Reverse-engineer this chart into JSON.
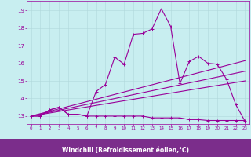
{
  "xlabel": "Windchill (Refroidissement éolien,°C)",
  "bg_color": "#c8eef0",
  "label_bg_color": "#7b2d8b",
  "label_text_color": "#ffffff",
  "line_color": "#990099",
  "grid_color": "#b0d8db",
  "xlim": [
    -0.5,
    23.5
  ],
  "ylim": [
    12.55,
    19.55
  ],
  "yticks": [
    13,
    14,
    15,
    16,
    17,
    18,
    19
  ],
  "xticks": [
    0,
    1,
    2,
    3,
    4,
    5,
    6,
    7,
    8,
    9,
    10,
    11,
    12,
    13,
    14,
    15,
    16,
    17,
    18,
    19,
    20,
    21,
    22,
    23
  ],
  "line1_x": [
    0,
    1,
    2,
    3,
    4,
    5,
    6,
    7,
    8,
    9,
    10,
    11,
    12,
    13,
    14,
    15,
    16,
    17,
    18,
    19,
    20,
    21,
    22,
    23
  ],
  "line1_y": [
    13.0,
    13.0,
    13.35,
    13.5,
    13.1,
    13.1,
    13.0,
    14.4,
    14.8,
    16.35,
    15.95,
    17.65,
    17.7,
    17.95,
    19.1,
    18.1,
    14.85,
    16.1,
    16.4,
    16.0,
    15.95,
    15.1,
    13.65,
    12.7
  ],
  "line2_x": [
    0,
    1,
    2,
    3,
    4,
    5,
    6,
    7,
    8,
    9,
    10,
    11,
    12,
    13,
    14,
    15,
    16,
    17,
    18,
    19,
    20,
    21,
    22,
    23
  ],
  "line2_y": [
    13.0,
    13.0,
    13.35,
    13.5,
    13.1,
    13.1,
    13.0,
    13.0,
    13.0,
    13.0,
    13.0,
    13.0,
    13.0,
    12.9,
    12.9,
    12.9,
    12.9,
    12.8,
    12.8,
    12.75,
    12.75,
    12.75,
    12.75,
    12.75
  ],
  "line3_x": [
    0,
    23
  ],
  "line3_y": [
    13.0,
    16.15
  ],
  "line4_x": [
    0,
    23
  ],
  "line4_y": [
    13.0,
    15.55
  ],
  "line5_x": [
    0,
    23
  ],
  "line5_y": [
    13.0,
    15.0
  ]
}
